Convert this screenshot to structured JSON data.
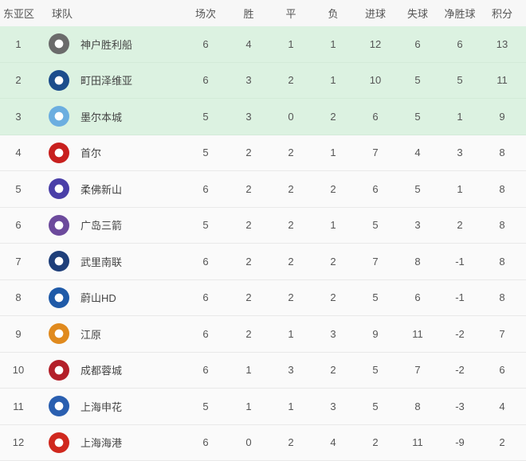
{
  "headers": [
    "东亚区",
    "球队",
    "场次",
    "胜",
    "平",
    "负",
    "进球",
    "失球",
    "净胜球",
    "积分"
  ],
  "highlight_color": "#dcf2e1",
  "rows": [
    {
      "rank": "1",
      "team": "神户胜利船",
      "logo": "vissel-kobe-logo",
      "color": "#6b6b6b",
      "stats": [
        "6",
        "4",
        "1",
        "1",
        "12",
        "6",
        "6",
        "13"
      ]
    },
    {
      "rank": "2",
      "team": "町田泽维亚",
      "logo": "machida-zelvia-logo",
      "color": "#1c4d8c",
      "stats": [
        "6",
        "3",
        "2",
        "1",
        "10",
        "5",
        "5",
        "11"
      ]
    },
    {
      "rank": "3",
      "team": "墨尔本城",
      "logo": "melbourne-city-logo",
      "color": "#6caee0",
      "stats": [
        "5",
        "3",
        "0",
        "2",
        "6",
        "5",
        "1",
        "9"
      ]
    },
    {
      "rank": "4",
      "team": "首尔",
      "logo": "fc-seoul-logo",
      "color": "#c8201e",
      "stats": [
        "5",
        "2",
        "2",
        "1",
        "7",
        "4",
        "3",
        "8"
      ]
    },
    {
      "rank": "5",
      "team": "柔佛新山",
      "logo": "johor-logo",
      "color": "#4a3fa8",
      "stats": [
        "6",
        "2",
        "2",
        "2",
        "6",
        "5",
        "1",
        "8"
      ]
    },
    {
      "rank": "6",
      "team": "广岛三箭",
      "logo": "hiroshima-logo",
      "color": "#6c4a9c",
      "stats": [
        "5",
        "2",
        "2",
        "1",
        "5",
        "3",
        "2",
        "8"
      ]
    },
    {
      "rank": "7",
      "team": "武里南联",
      "logo": "buriram-logo",
      "color": "#1f3f7a",
      "stats": [
        "6",
        "2",
        "2",
        "2",
        "7",
        "8",
        "-1",
        "8"
      ]
    },
    {
      "rank": "8",
      "team": "蔚山HD",
      "logo": "ulsan-logo",
      "color": "#1f5aa8",
      "stats": [
        "6",
        "2",
        "2",
        "2",
        "5",
        "6",
        "-1",
        "8"
      ]
    },
    {
      "rank": "9",
      "team": "江原",
      "logo": "gangwon-logo",
      "color": "#e08a1e",
      "stats": [
        "6",
        "2",
        "1",
        "3",
        "9",
        "11",
        "-2",
        "7"
      ]
    },
    {
      "rank": "10",
      "team": "成都蓉城",
      "logo": "chengdu-logo",
      "color": "#b3202a",
      "stats": [
        "6",
        "1",
        "3",
        "2",
        "5",
        "7",
        "-2",
        "6"
      ]
    },
    {
      "rank": "11",
      "team": "上海申花",
      "logo": "shenhua-logo",
      "color": "#2a5fb0",
      "stats": [
        "5",
        "1",
        "1",
        "3",
        "5",
        "8",
        "-3",
        "4"
      ]
    },
    {
      "rank": "12",
      "team": "上海海港",
      "logo": "port-logo",
      "color": "#d0281e",
      "stats": [
        "6",
        "0",
        "2",
        "4",
        "2",
        "11",
        "-9",
        "2"
      ]
    }
  ]
}
